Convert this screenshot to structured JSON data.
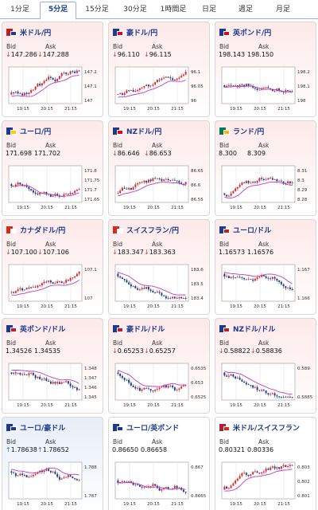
{
  "tabs": [
    "1分足",
    "5分足",
    "15分足",
    "30分足",
    "1時間足",
    "日足",
    "週足",
    "月足"
  ],
  "active_tab_index": 1,
  "labels": {
    "bid": "Bid",
    "ask": "Ask"
  },
  "cards": [
    {
      "pair": "米ドル/円",
      "flag": [
        "#b22234",
        "#1f3a8a"
      ],
      "bid": "147.286",
      "ask": "147.288",
      "dir": "down",
      "bg": "pink",
      "ticks": [
        "147.2",
        "147.1",
        "147"
      ],
      "x": [
        "19:15",
        "20:15",
        "21:15"
      ],
      "trend": "up",
      "seed": 3
    },
    {
      "pair": "豪ドル/円",
      "flag": [
        "#1f3a8a",
        "#c8102e"
      ],
      "bid": "96.110",
      "ask": "96.115",
      "dir": "down",
      "bg": "pink",
      "ticks": [
        "96.1",
        "96.05",
        "96"
      ],
      "x": [
        "19:15",
        "20:15",
        "21:15"
      ],
      "trend": "up",
      "seed": 7
    },
    {
      "pair": "英ポンド/円",
      "flag": [
        "#1f3a8a",
        "#c8102e"
      ],
      "bid": "198.143",
      "ask": "198.150",
      "dir": "none",
      "bg": "pink",
      "ticks": [
        "198.2",
        "198.1",
        "198"
      ],
      "x": [
        "19:15",
        "20:15",
        "21:15"
      ],
      "trend": "flat",
      "seed": 11
    },
    {
      "pair": "ユーロ/円",
      "flag": [
        "#1f3a8a",
        "#ffcc00"
      ],
      "bid": "171.698",
      "ask": "171.702",
      "dir": "none",
      "bg": "pink",
      "ticks": [
        "171.8",
        "171.75",
        "171.7",
        "171.65"
      ],
      "x": [
        "19:15",
        "20:15",
        "21:15"
      ],
      "trend": "flat",
      "seed": 5
    },
    {
      "pair": "NZドル/円",
      "flag": [
        "#1f3a8a",
        "#c8102e"
      ],
      "bid": "86.646",
      "ask": "86.653",
      "dir": "down",
      "bg": "pink",
      "ticks": [
        "86.65",
        "86.6",
        "86.55"
      ],
      "x": [
        "19:15",
        "20:15",
        "21:15"
      ],
      "trend": "up",
      "seed": 13
    },
    {
      "pair": "ランド/円",
      "flag": [
        "#007a4d",
        "#ffb612"
      ],
      "bid": "8.300",
      "ask": "8.309",
      "dir": "none",
      "bg": "pink",
      "ticks": [
        "8.31",
        "8.3",
        "8.29",
        "8.28"
      ],
      "x": [
        "19:15",
        "20:15",
        "21:15"
      ],
      "trend": "up",
      "seed": 17
    },
    {
      "pair": "カナダドル/円",
      "flag": [
        "#d52b1e",
        "#ffffff"
      ],
      "bid": "107.100",
      "ask": "107.106",
      "dir": "down",
      "bg": "pink",
      "ticks": [
        "107.1",
        "107"
      ],
      "x": [
        "19:15",
        "20:15",
        "21:15"
      ],
      "trend": "up",
      "seed": 19
    },
    {
      "pair": "スイスフラン/円",
      "flag": [
        "#d52b1e",
        "#ffffff"
      ],
      "bid": "183.347",
      "ask": "183.363",
      "dir": "down",
      "bg": "pink",
      "ticks": [
        "183.6",
        "183.5",
        "183.4"
      ],
      "x": [
        "19:15",
        "20:15",
        "21:15"
      ],
      "trend": "down",
      "seed": 23
    },
    {
      "pair": "ユーロ/ドル",
      "flag": [
        "#1f3a8a",
        "#b22234"
      ],
      "bid": "1.16573",
      "ask": "1.16576",
      "dir": "none",
      "bg": "pink",
      "ticks": [
        "1.167",
        "1.166"
      ],
      "x": [
        "19:15",
        "20:15",
        "21:15"
      ],
      "trend": "down",
      "seed": 29
    },
    {
      "pair": "英ポンド/ドル",
      "flag": [
        "#1f3a8a",
        "#b22234"
      ],
      "bid": "1.34526",
      "ask": "1.34535",
      "dir": "none",
      "bg": "pink",
      "ticks": [
        "1.348",
        "1.347",
        "1.346",
        "1.345"
      ],
      "x": [
        "19:15",
        "20:15",
        "21:15"
      ],
      "trend": "down",
      "seed": 31
    },
    {
      "pair": "豪ドル/ドル",
      "flag": [
        "#1f3a8a",
        "#b22234"
      ],
      "bid": "0.65253",
      "ask": "0.65257",
      "dir": "down",
      "bg": "pink",
      "ticks": [
        "0.6535",
        "0.653",
        "0.6525"
      ],
      "x": [
        "19:15",
        "20:15",
        "21:15"
      ],
      "trend": "down",
      "seed": 37
    },
    {
      "pair": "NZドル/ドル",
      "flag": [
        "#1f3a8a",
        "#b22234"
      ],
      "bid": "0.58822",
      "ask": "0.58836",
      "dir": "down",
      "bg": "pink",
      "ticks": [
        "0.589",
        "0.5885"
      ],
      "x": [
        "19:15",
        "20:15",
        "21:15"
      ],
      "trend": "down",
      "seed": 41
    },
    {
      "pair": "ユーロ/豪ドル",
      "flag": [
        "#1f3a8a",
        "#1f3a8a"
      ],
      "bid": "1.78638",
      "ask": "1.78652",
      "dir": "up",
      "bg": "blue",
      "ticks": [
        "1.788",
        "1.787"
      ],
      "x": [
        "19:15",
        "20:15",
        "21:15"
      ],
      "trend": "down",
      "seed": 43
    },
    {
      "pair": "ユーロ/英ポンド",
      "flag": [
        "#1f3a8a",
        "#1f3a8a"
      ],
      "bid": "0.86650",
      "ask": "0.86658",
      "dir": "none",
      "bg": "white",
      "ticks": [
        "0.867",
        "0.8665"
      ],
      "x": [
        "19:15",
        "20:15",
        "21:15"
      ],
      "trend": "flat",
      "seed": 47
    },
    {
      "pair": "米ドル/スイスフラン",
      "flag": [
        "#b22234",
        "#d52b1e"
      ],
      "bid": "0.80321",
      "ask": "0.80336",
      "dir": "none",
      "bg": "white",
      "ticks": [
        "0.803",
        "0.802",
        "0.801"
      ],
      "x": [
        "19:15",
        "20:15",
        "21:15"
      ],
      "trend": "up",
      "seed": 53
    }
  ]
}
